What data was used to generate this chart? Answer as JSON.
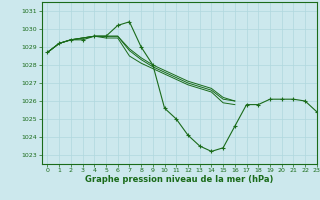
{
  "bg_color": "#cce8ed",
  "grid_color": "#b0d8de",
  "line_color": "#1a6b1a",
  "marker_color": "#1a6b1a",
  "xlabel": "Graphe pression niveau de la mer (hPa)",
  "xlabel_fontsize": 6.0,
  "ylim": [
    1022.5,
    1031.5
  ],
  "xlim": [
    -0.5,
    23
  ],
  "yticks": [
    1023,
    1024,
    1025,
    1026,
    1027,
    1028,
    1029,
    1030,
    1031
  ],
  "xticks": [
    0,
    1,
    2,
    3,
    4,
    5,
    6,
    7,
    8,
    9,
    10,
    11,
    12,
    13,
    14,
    15,
    16,
    17,
    18,
    19,
    20,
    21,
    22,
    23
  ],
  "series": [
    [
      1028.7,
      1029.2,
      1029.4,
      1029.4,
      1029.6,
      1029.6,
      1030.2,
      1030.4,
      1029.0,
      1028.0,
      1025.6,
      1025.0,
      1024.1,
      1023.5,
      1023.2,
      1023.4,
      1024.6,
      1025.8,
      1025.8,
      1026.1,
      1026.1,
      1026.1,
      1026.0,
      1025.4
    ],
    [
      1028.7,
      1029.2,
      1029.4,
      1029.5,
      1029.6,
      1029.5,
      1029.5,
      1028.5,
      1028.1,
      1027.8,
      1027.5,
      1027.2,
      1026.9,
      1026.7,
      1026.5,
      1025.9,
      1025.8,
      null,
      null,
      null,
      null,
      null,
      null,
      null
    ],
    [
      1028.7,
      1029.2,
      1029.4,
      1029.5,
      1029.6,
      1029.6,
      1029.6,
      1028.8,
      1028.3,
      1027.9,
      1027.6,
      1027.3,
      1027.0,
      1026.8,
      1026.6,
      1026.1,
      1026.0,
      null,
      null,
      null,
      null,
      null,
      null,
      null
    ],
    [
      1028.7,
      1029.2,
      1029.4,
      1029.5,
      1029.6,
      1029.6,
      1029.6,
      1028.9,
      1028.4,
      1028.0,
      1027.7,
      1027.4,
      1027.1,
      1026.9,
      1026.7,
      1026.2,
      1026.0,
      null,
      null,
      null,
      null,
      null,
      null,
      null
    ]
  ]
}
